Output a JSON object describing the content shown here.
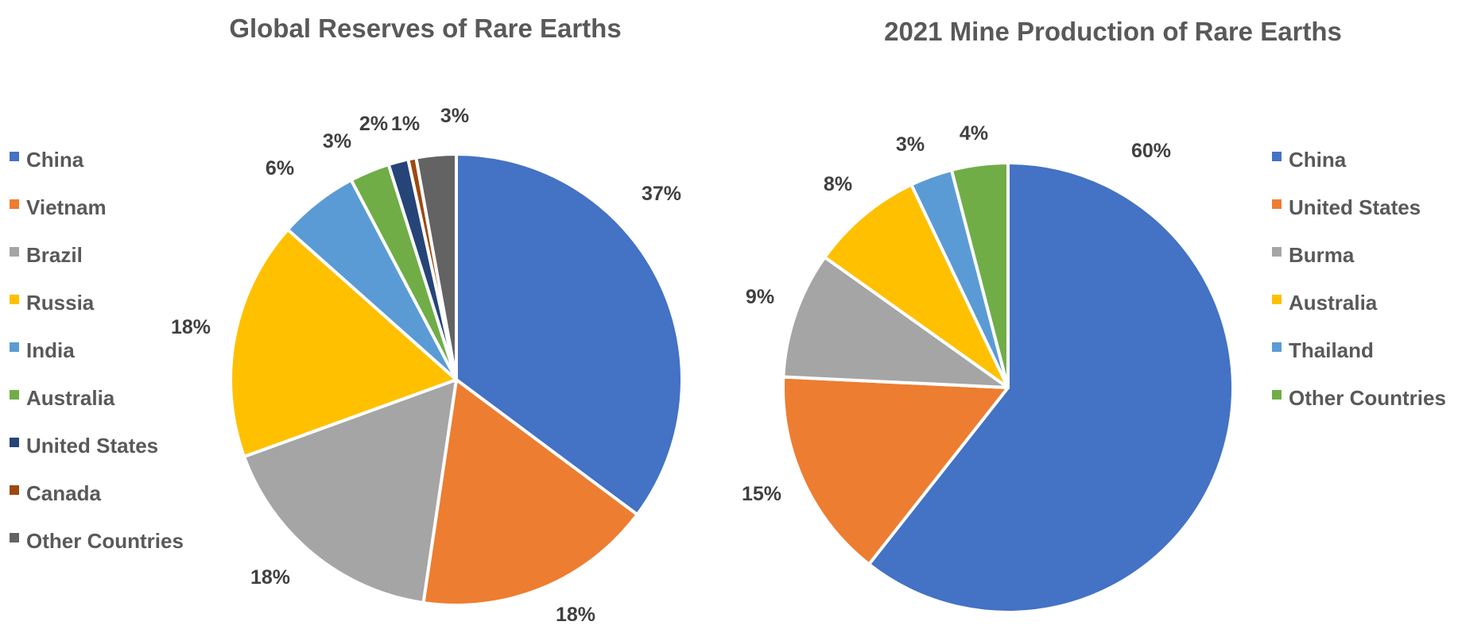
{
  "chart_data": [
    {
      "type": "pie",
      "title": "Global Reserves of Rare Earths",
      "legend_position": "left",
      "slices": [
        {
          "label": "China",
          "value": 37,
          "data_label": "37%",
          "color": "#4472C4"
        },
        {
          "label": "Vietnam",
          "value": 18,
          "data_label": "18%",
          "color": "#ED7D31"
        },
        {
          "label": "Brazil",
          "value": 18,
          "data_label": "18%",
          "color": "#A5A5A5"
        },
        {
          "label": "Russia",
          "value": 18,
          "data_label": "18%",
          "color": "#FFC000"
        },
        {
          "label": "India",
          "value": 6,
          "data_label": "6%",
          "color": "#5B9BD5"
        },
        {
          "label": "Australia",
          "value": 3,
          "data_label": "3%",
          "color": "#70AD47"
        },
        {
          "label": "United States",
          "value": 1.5,
          "data_label": "2%",
          "color": "#264478"
        },
        {
          "label": "Canada",
          "value": 0.6,
          "data_label": "1%",
          "color": "#9E480E"
        },
        {
          "label": "Other Countries",
          "value": 3,
          "data_label": "3%",
          "color": "#636363"
        }
      ]
    },
    {
      "type": "pie",
      "title": "2021 Mine Production of Rare Earths",
      "legend_position": "right",
      "slices": [
        {
          "label": "China",
          "value": 60,
          "data_label": "60%",
          "color": "#4472C4"
        },
        {
          "label": "United States",
          "value": 15,
          "data_label": "15%",
          "color": "#ED7D31"
        },
        {
          "label": "Burma",
          "value": 9,
          "data_label": "9%",
          "color": "#A5A5A5"
        },
        {
          "label": "Australia",
          "value": 8,
          "data_label": "8%",
          "color": "#FFC000"
        },
        {
          "label": "Thailand",
          "value": 3,
          "data_label": "3%",
          "color": "#5B9BD5"
        },
        {
          "label": "Other Countries",
          "value": 4,
          "data_label": "4%",
          "color": "#70AD47"
        }
      ]
    }
  ]
}
